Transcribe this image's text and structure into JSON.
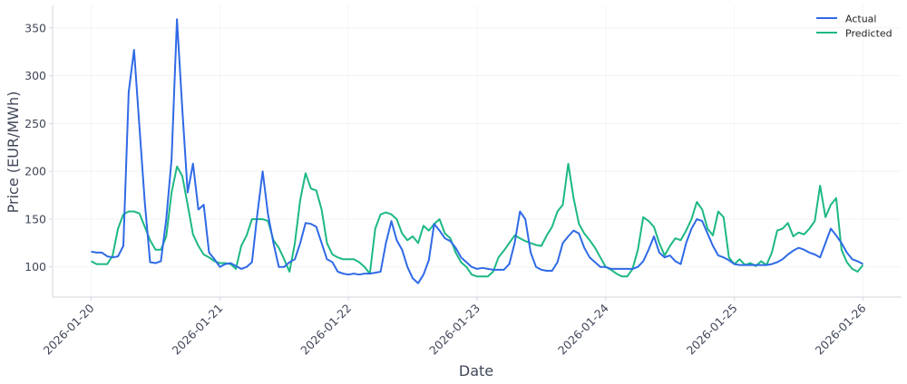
{
  "chart_data": {
    "type": "line",
    "title": "",
    "xlabel": "Date",
    "ylabel": "Price (EUR/MWh)",
    "x_start": "2026-01-20 00:00",
    "x_step_hours": 1,
    "xlim_days": [
      -0.3,
      6.3
    ],
    "ylim": [
      68.5,
      373.5
    ],
    "x_ticks": [
      "2026-01-20",
      "2026-01-21",
      "2026-01-22",
      "2026-01-23",
      "2026-01-24",
      "2026-01-25",
      "2026-01-26"
    ],
    "y_ticks": [
      100,
      150,
      200,
      250,
      300,
      350
    ],
    "grid": true,
    "legend_position": "top-right",
    "series": [
      {
        "name": "Actual",
        "color": "#2f6ae6",
        "values": [
          116,
          115,
          115,
          111,
          110,
          111,
          122,
          283,
          327,
          247,
          168,
          105,
          104,
          106,
          150,
          213,
          359,
          265,
          178,
          208,
          160,
          165,
          115,
          108,
          100,
          103,
          104,
          101,
          98,
          100,
          105,
          155,
          200,
          155,
          125,
          100,
          100,
          105,
          108,
          125,
          146,
          145,
          142,
          125,
          108,
          105,
          95,
          93,
          92,
          93,
          92,
          93,
          93,
          94,
          95,
          125,
          148,
          128,
          118,
          100,
          88,
          83,
          92,
          107,
          145,
          138,
          130,
          127,
          120,
          110,
          105,
          100,
          98,
          99,
          98,
          97,
          97,
          97,
          103,
          125,
          158,
          150,
          115,
          100,
          97,
          96,
          96,
          105,
          125,
          132,
          138,
          135,
          120,
          110,
          105,
          100,
          100,
          98,
          98,
          98,
          98,
          98,
          100,
          106,
          118,
          132,
          115,
          110,
          112,
          106,
          103,
          125,
          140,
          150,
          148,
          135,
          122,
          112,
          110,
          107,
          103,
          102,
          102,
          102,
          102,
          102,
          102,
          103,
          105,
          108,
          113,
          117,
          120,
          118,
          115,
          113,
          110,
          125,
          140,
          133,
          125,
          115,
          108,
          106,
          103
        ]
      },
      {
        "name": "Predicted",
        "color": "#1db883",
        "values": [
          106,
          103,
          103,
          103,
          112,
          140,
          155,
          158,
          158,
          156,
          142,
          128,
          118,
          118,
          132,
          178,
          205,
          195,
          165,
          134,
          122,
          113,
          110,
          106,
          104,
          104,
          103,
          98,
          122,
          133,
          150,
          150,
          150,
          148,
          128,
          120,
          108,
          95,
          125,
          170,
          198,
          182,
          180,
          160,
          125,
          113,
          110,
          108,
          108,
          108,
          105,
          100,
          93,
          140,
          155,
          157,
          155,
          150,
          135,
          128,
          132,
          125,
          143,
          138,
          145,
          150,
          135,
          130,
          115,
          105,
          100,
          92,
          90,
          90,
          90,
          95,
          110,
          117,
          125,
          133,
          130,
          127,
          125,
          123,
          122,
          133,
          142,
          158,
          165,
          208,
          172,
          145,
          135,
          128,
          120,
          110,
          100,
          97,
          93,
          90,
          90,
          98,
          118,
          152,
          148,
          142,
          125,
          112,
          122,
          130,
          128,
          138,
          150,
          168,
          160,
          140,
          133,
          158,
          152,
          110,
          103,
          108,
          102,
          104,
          101,
          106,
          102,
          115,
          138,
          140,
          146,
          132,
          136,
          134,
          140,
          148,
          185,
          152,
          165,
          172,
          118,
          105,
          98,
          95,
          102
        ]
      }
    ]
  }
}
